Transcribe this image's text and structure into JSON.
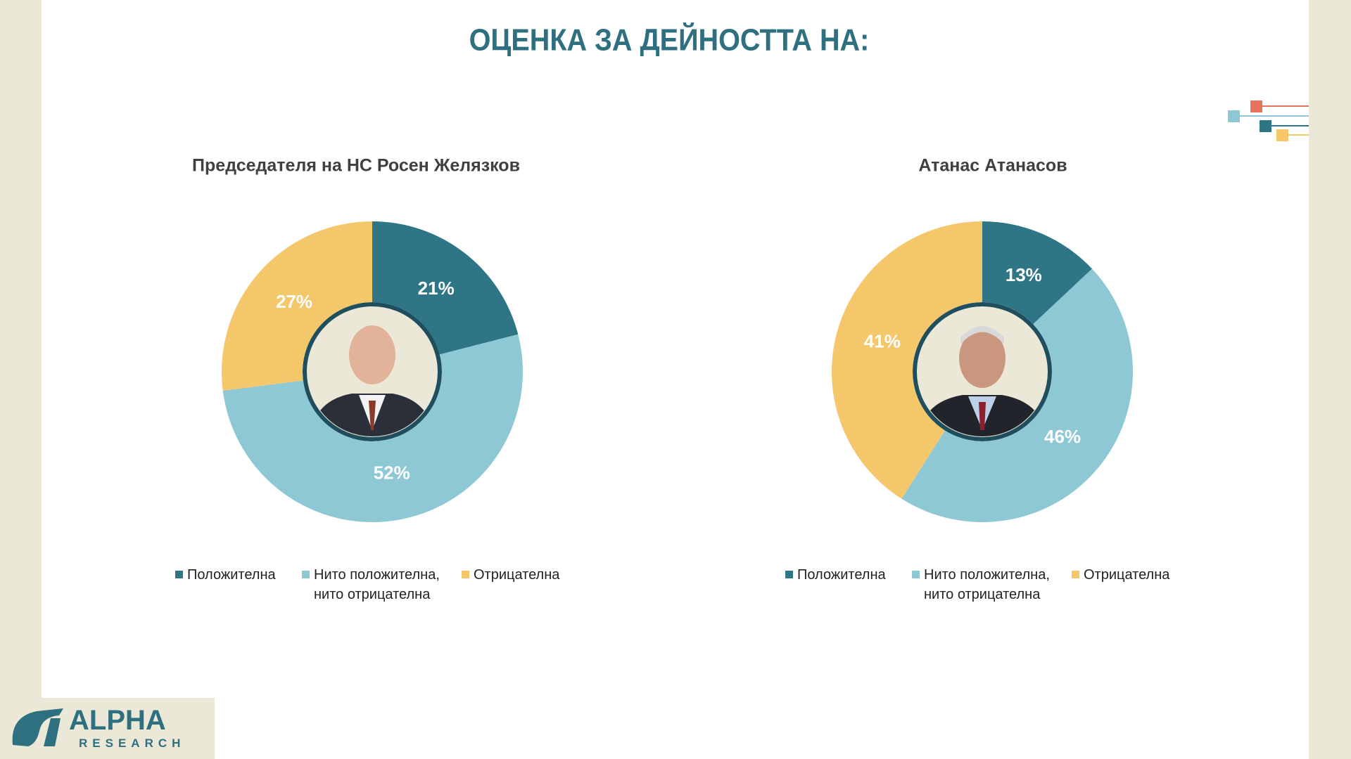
{
  "title": "ОЦЕНКА ЗА ДЕЙНОСТТА НА:",
  "chart_data": [
    {
      "type": "donut",
      "title": "Председателя на НС Росен Желязков",
      "categories": [
        "Положителна",
        "Нито положителна, нито отрицателна",
        "Отрицателна"
      ],
      "values": [
        21,
        52,
        27
      ],
      "value_labels": [
        "21%",
        "52%",
        "27%"
      ],
      "colors": [
        "#2e7585",
        "#8ec8d4",
        "#f5c76b"
      ]
    },
    {
      "type": "donut",
      "title": "Атанас Атанасов",
      "categories": [
        "Положителна",
        "Нито положителна, нито отрицателна",
        "Отрицателна"
      ],
      "values": [
        13,
        46,
        41
      ],
      "value_labels": [
        "13%",
        "46%",
        "41%"
      ],
      "colors": [
        "#2e7585",
        "#8ec8d4",
        "#f5c76b"
      ]
    }
  ],
  "logo": {
    "name": "ALPHA",
    "tagline": "RESEARCH"
  }
}
